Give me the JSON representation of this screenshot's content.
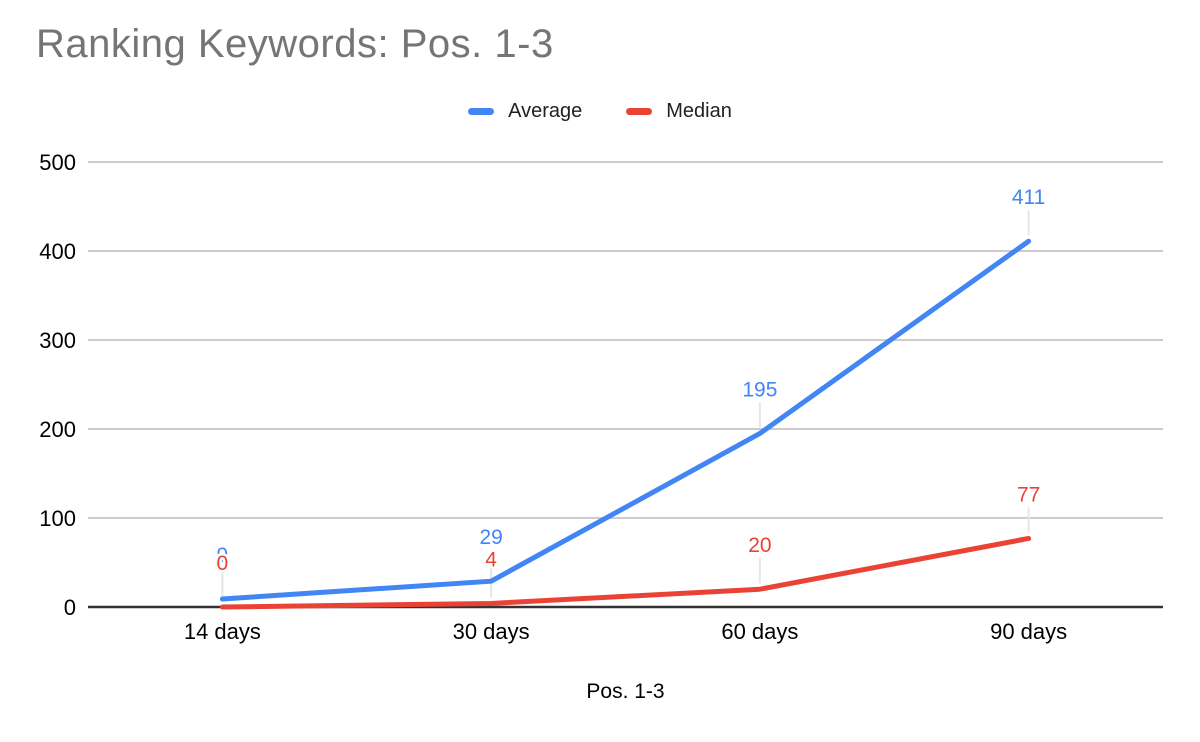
{
  "title": "Ranking Keywords: Pos. 1-3",
  "chart_data": {
    "type": "line",
    "categories": [
      "14 days",
      "30 days",
      "60 days",
      "90 days"
    ],
    "series": [
      {
        "name": "Average",
        "color": "#4285F4",
        "values": [
          9,
          29,
          195,
          411
        ]
      },
      {
        "name": "Median",
        "color": "#EA4335",
        "values": [
          0,
          4,
          20,
          77
        ]
      }
    ],
    "xlabel": "Pos. 1-3",
    "ylabel": "",
    "ylim": [
      0,
      500
    ],
    "yticks": [
      0,
      100,
      200,
      300,
      400,
      500
    ],
    "grid": true,
    "legend_position": "top",
    "data_labels": true
  },
  "colors": {
    "title": "#757575",
    "grid": "#cccccc",
    "axis_line": "#333333",
    "tick_label": "#000000",
    "leader_line": "#e6e6e6",
    "legend_text": "#212121",
    "background": "#ffffff"
  }
}
